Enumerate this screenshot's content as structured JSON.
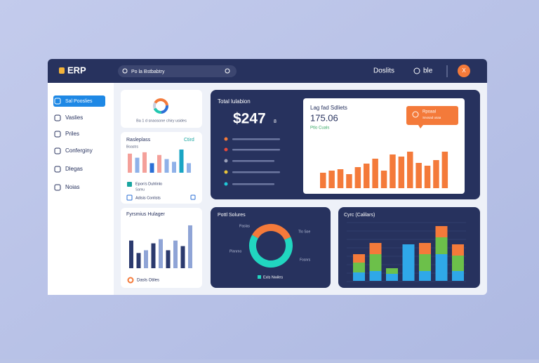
{
  "header": {
    "logo": "ERP",
    "search": "Po la Bstbabtry",
    "link": "Doslits",
    "user": "ble",
    "avatar": "X"
  },
  "sidebar": {
    "items": [
      "Sal Pooslies",
      "Vaslies",
      "Priles",
      "Conferginy",
      "Dlegas",
      "Noias"
    ]
  },
  "summary_card": {
    "caption": "Ba 1 d snaosone chiry usides",
    "segments": [
      40,
      25,
      20,
      15
    ],
    "colors": [
      "#f47a3a",
      "#2b6fd6",
      "#21c7b0",
      "#c9cfdf"
    ]
  },
  "rasleplass": {
    "title": "Rasleplass",
    "link": "Ctird",
    "subtitle": "Boastrs",
    "ylim": [
      0,
      35
    ],
    "values": [
      28,
      22,
      30,
      14,
      26,
      20,
      16,
      34,
      14
    ],
    "colors": [
      "#f4a09a",
      "#8fb1e8",
      "#f4a09a",
      "#2b6fd6",
      "#f4a09a",
      "#8fb1e8",
      "#8fb1e8",
      "#1aa5c4",
      "#8fb1e8"
    ],
    "legend": [
      "Epon's Duhlinlo",
      "Adisis Conlists"
    ],
    "legend_note": "Samu"
  },
  "fyrsmius": {
    "title": "Fyrsmius Hulager",
    "ylim": [
      0,
      65
    ],
    "values": [
      40,
      22,
      26,
      36,
      42,
      26,
      40,
      32,
      62
    ],
    "colors": [
      "#2b3a6e",
      "#2b3a6e",
      "#8fa4d6",
      "#2b3a6e",
      "#8fa4d6",
      "#2b3a6e",
      "#8fa4d6",
      "#2b3a6e",
      "#8fa4d6"
    ],
    "footer": "Dasls Otiles"
  },
  "total": {
    "title": "Total lulabion",
    "amount": "$247",
    "suffix": "8"
  },
  "sales": {
    "title": "Lag fad Sdliets",
    "value": "175.06",
    "caption": "Ptlo Cuals",
    "callout": "Rpoaal",
    "callout_note": "Snosad usaa",
    "color": "#f47a3a",
    "ylim": [
      0,
      56
    ],
    "values": [
      22,
      25,
      27,
      20,
      30,
      35,
      42,
      25,
      48,
      45,
      52,
      36,
      32,
      40,
      52
    ]
  },
  "sources": {
    "title": "Pottl Solures",
    "labels": [
      "Paslas",
      "Tlo Soe",
      "Pinnrno",
      "Fosnrs"
    ],
    "segments": [
      35,
      65
    ],
    "colors": [
      "#f47a3a",
      "#21d6c0"
    ],
    "footer": "Exls Nwiles"
  },
  "cycle": {
    "title": "Cyrc (Calilars)",
    "ylim": [
      0,
      85
    ],
    "series": [
      {
        "color": "#2fa8e8",
        "values": [
          12,
          14,
          10,
          52,
          14,
          38,
          14
        ]
      },
      {
        "color": "#6cc04a",
        "values": [
          14,
          24,
          8,
          0,
          24,
          24,
          22
        ]
      },
      {
        "color": "#f47a3a",
        "values": [
          12,
          16,
          0,
          0,
          16,
          16,
          16
        ]
      }
    ]
  }
}
